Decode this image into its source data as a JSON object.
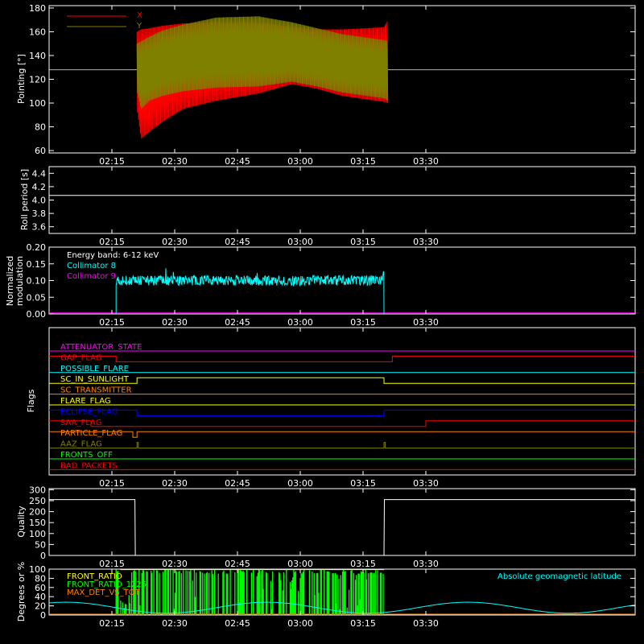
{
  "chart_data": [
    {
      "type": "line",
      "ylabel": "Pointing [°]",
      "ylim": [
        58,
        182
      ],
      "yticks": [
        60,
        80,
        100,
        120,
        140,
        160,
        180
      ],
      "xlim_min": [
        0,
        140
      ],
      "xticks": [
        {
          "min": 15,
          "label": "02:15"
        },
        {
          "min": 30,
          "label": "02:30"
        },
        {
          "min": 45,
          "label": "02:45"
        },
        {
          "min": 60,
          "label": "03:00"
        },
        {
          "min": 75,
          "label": "03:15"
        },
        {
          "min": 90,
          "label": "03:30"
        }
      ],
      "hline": 128,
      "legend": "top-left",
      "series": [
        {
          "name": "X",
          "color": "#ff0000",
          "x": [
            21,
            22,
            24,
            27,
            32,
            40,
            50,
            58,
            64,
            70,
            76,
            80,
            81
          ],
          "upper": [
            160,
            162,
            163,
            165,
            167,
            168,
            168,
            164,
            162,
            162,
            163,
            164,
            170
          ],
          "lower": [
            95,
            70,
            76,
            84,
            95,
            102,
            108,
            116,
            112,
            106,
            103,
            101,
            100
          ]
        },
        {
          "name": "Y",
          "color": "#808000",
          "x": [
            21,
            22,
            24,
            27,
            32,
            40,
            50,
            58,
            64,
            70,
            76,
            80,
            81
          ],
          "upper": [
            150,
            152,
            156,
            161,
            166,
            172,
            173,
            168,
            163,
            158,
            155,
            153,
            152
          ],
          "lower": [
            110,
            95,
            102,
            106,
            110,
            113,
            114,
            118,
            114,
            109,
            106,
            104,
            102
          ]
        }
      ]
    },
    {
      "type": "line",
      "ylabel": "Roll period [s]",
      "ylim": [
        3.5,
        4.5
      ],
      "yticks": [
        "3.6",
        "3.8",
        "4.0",
        "4.2",
        "4.4"
      ],
      "series": [
        {
          "x": [
            0,
            140
          ],
          "y": [
            4.07,
            4.07
          ],
          "color": "#ffffff"
        }
      ]
    },
    {
      "type": "line",
      "ylabel": "Normalized modulation",
      "ylim": [
        0,
        0.2
      ],
      "yticks": [
        "0.00",
        "0.05",
        "0.10",
        "0.15",
        "0.20"
      ],
      "annotation": "Energy band: 6-12 keV",
      "legend": "top-left",
      "series": [
        {
          "name": "Collimator 8",
          "color": "#00ffff",
          "x_range": [
            16,
            80
          ],
          "mean": 0.1,
          "spread": 0.015
        },
        {
          "name": "Collimator 9",
          "color": "#ff00ff",
          "x_range": [
            0,
            140
          ],
          "value": 0.0
        }
      ]
    },
    {
      "type": "line",
      "ylabel": "Flags",
      "flags": [
        {
          "name": "ATTENUATOR_STATE",
          "color": "#ff00ff",
          "steps": []
        },
        {
          "name": "GAP_FLAG",
          "color": "#ff0000",
          "steps": [
            [
              0,
              1
            ],
            [
              16,
              0
            ],
            [
              80,
              0
            ],
            [
              82,
              1
            ]
          ]
        },
        {
          "name": "POSSIBLE_FLARE",
          "color": "#00ffff",
          "steps": []
        },
        {
          "name": "SC_IN_SUNLIGHT",
          "color": "#ffff00",
          "steps": [
            [
              0,
              0
            ],
            [
              21,
              1
            ],
            [
              80,
              0
            ]
          ]
        },
        {
          "name": "SC_TRANSMITTER",
          "color": "#ff8000",
          "steps": []
        },
        {
          "name": "FLARE_FLAG",
          "color": "#ffff00",
          "steps": []
        },
        {
          "name": "ECLIPSE_FLAG",
          "color": "#0000ff",
          "steps": [
            [
              0,
              1
            ],
            [
              21,
              0
            ],
            [
              80,
              1
            ]
          ]
        },
        {
          "name": "SAA_FLAG",
          "color": "#ff0000",
          "steps": [
            [
              0,
              1
            ],
            [
              10,
              0
            ],
            [
              90,
              1
            ]
          ]
        },
        {
          "name": "PARTICLE_FLAG",
          "color": "#ff8000",
          "steps": [
            [
              0,
              1
            ],
            [
              20,
              0
            ],
            [
              21,
              1
            ]
          ]
        },
        {
          "name": "AAZ_FLAG",
          "color": "#808000",
          "steps": [
            [
              0,
              0
            ],
            [
              21,
              1
            ],
            [
              21.3,
              0
            ],
            [
              80,
              1
            ],
            [
              80.3,
              0
            ]
          ]
        },
        {
          "name": "FRONTS_OFF",
          "color": "#00ff00",
          "steps": []
        },
        {
          "name": "BAD_PACKETS",
          "color": "#ff0000",
          "steps": []
        }
      ]
    },
    {
      "type": "line",
      "ylabel": "Quality",
      "ylim": [
        0,
        305
      ],
      "yticks": [
        0,
        50,
        100,
        150,
        200,
        250,
        300
      ],
      "series": [
        {
          "color": "#ffffff",
          "x": [
            0,
            20.5,
            20.6,
            80,
            80.1,
            140
          ],
          "y": [
            255,
            255,
            0,
            0,
            255,
            255
          ]
        }
      ]
    },
    {
      "type": "line",
      "ylabel": "Degrees or %",
      "ylim": [
        0,
        100
      ],
      "yticks": [
        0,
        20,
        40,
        60,
        80,
        100
      ],
      "legend": "top-left",
      "annotation": "Absolute geomagnetic latitude",
      "series": [
        {
          "name": "FRONT_RATIO",
          "color": "#ffff00",
          "x_range": [
            16,
            80
          ]
        },
        {
          "name": "FRONT_RATIO_1225",
          "color": "#00ff00",
          "x_range": [
            16,
            80
          ]
        },
        {
          "name": "MAX_DET_VS_TOT",
          "color": "#ff8000"
        },
        {
          "name": "Absolute geomagnetic latitude",
          "color": "#00ffff"
        }
      ]
    }
  ]
}
